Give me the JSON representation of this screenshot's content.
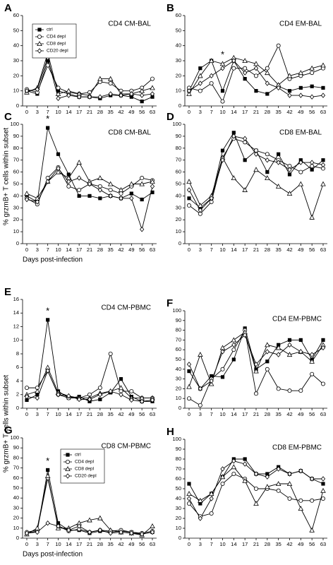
{
  "chart_data": [
    {
      "type": "line",
      "letter": "A",
      "title": "CD4 CM-BAL",
      "ylabel": "% grzmB+ T cells within subset",
      "legend": true,
      "categories": [
        "0",
        "3",
        "7",
        "10",
        "14",
        "17",
        "21",
        "28",
        "35",
        "42",
        "49",
        "56",
        "63"
      ],
      "ylim": [
        0,
        60
      ],
      "yticks": [
        0,
        10,
        20,
        30,
        40,
        50,
        60
      ],
      "series": [
        {
          "name": "ctrl",
          "color": "#000000",
          "marker": "square-filled",
          "values": [
            10,
            8,
            30,
            10,
            8,
            6,
            6,
            5,
            7,
            7,
            6,
            3,
            6
          ]
        },
        {
          "name": "CD4 depl",
          "color": "#000000",
          "marker": "circle",
          "values": [
            11,
            9,
            27,
            12,
            9,
            8,
            9,
            16,
            15,
            10,
            10,
            12,
            18
          ]
        },
        {
          "name": "CD8 depl",
          "color": "#000000",
          "marker": "triangle",
          "values": [
            9,
            12,
            35,
            8,
            10,
            8,
            7,
            18,
            18,
            8,
            8,
            10,
            12
          ]
        },
        {
          "name": "CD20 depl",
          "color": "#000000",
          "marker": "diamond",
          "values": [
            10,
            11,
            32,
            5,
            7,
            6,
            6,
            6,
            8,
            7,
            8,
            7,
            8
          ]
        }
      ]
    },
    {
      "type": "line",
      "letter": "B",
      "title": "CD4 EM-BAL",
      "annotation": "*",
      "categories": [
        "0",
        "3",
        "7",
        "10",
        "14",
        "17",
        "21",
        "28",
        "35",
        "42",
        "49",
        "56",
        "63"
      ],
      "ylim": [
        0,
        60
      ],
      "yticks": [
        0,
        10,
        20,
        30,
        40,
        50,
        60
      ],
      "series": [
        {
          "name": "ctrl",
          "color": "#000000",
          "marker": "square-filled",
          "values": [
            10,
            25,
            30,
            10,
            30,
            18,
            10,
            8,
            13,
            10,
            12,
            13,
            12
          ]
        },
        {
          "name": "CD4 depl",
          "color": "#000000",
          "marker": "circle",
          "values": [
            12,
            10,
            15,
            3,
            25,
            25,
            20,
            25,
            40,
            18,
            20,
            22,
            25
          ]
        },
        {
          "name": "CD8 depl",
          "color": "#000000",
          "marker": "triangle",
          "values": [
            8,
            20,
            30,
            28,
            32,
            30,
            28,
            22,
            14,
            20,
            22,
            25,
            27
          ]
        },
        {
          "name": "CD20 depl",
          "color": "#000000",
          "marker": "diamond",
          "values": [
            10,
            15,
            20,
            25,
            30,
            22,
            25,
            15,
            12,
            7,
            7,
            6,
            7
          ]
        }
      ]
    },
    {
      "type": "line",
      "letter": "C",
      "title": "CD8 CM-BAL",
      "xlabel": "Days post-infection",
      "annotation": "*",
      "categories": [
        "0",
        "3",
        "7",
        "10",
        "14",
        "17",
        "21",
        "28",
        "35",
        "42",
        "49",
        "56",
        "63"
      ],
      "ylim": [
        0,
        100
      ],
      "yticks": [
        0,
        10,
        20,
        30,
        40,
        50,
        60,
        70,
        80,
        90,
        100
      ],
      "series": [
        {
          "name": "ctrl",
          "color": "#000000",
          "marker": "square-filled",
          "values": [
            40,
            35,
            97,
            75,
            58,
            40,
            40,
            38,
            40,
            38,
            42,
            37,
            43
          ]
        },
        {
          "name": "CD4 depl",
          "color": "#000000",
          "marker": "circle",
          "values": [
            38,
            33,
            55,
            64,
            48,
            45,
            50,
            48,
            45,
            42,
            48,
            55,
            53
          ]
        },
        {
          "name": "CD8 depl",
          "color": "#000000",
          "marker": "triangle",
          "values": [
            42,
            38,
            52,
            60,
            55,
            68,
            52,
            55,
            50,
            45,
            50,
            50,
            52
          ]
        },
        {
          "name": "CD20 depl",
          "color": "#000000",
          "marker": "diamond",
          "values": [
            37,
            35,
            52,
            63,
            52,
            55,
            50,
            45,
            40,
            38,
            38,
            12,
            48
          ]
        }
      ]
    },
    {
      "type": "line",
      "letter": "D",
      "title": "CD8 EM-BAL",
      "categories": [
        "0",
        "3",
        "7",
        "10",
        "14",
        "17",
        "21",
        "28",
        "35",
        "42",
        "49",
        "56",
        "63"
      ],
      "ylim": [
        0,
        100
      ],
      "yticks": [
        0,
        10,
        20,
        30,
        40,
        50,
        60,
        70,
        80,
        90,
        100
      ],
      "series": [
        {
          "name": "ctrl",
          "color": "#000000",
          "marker": "square-filled",
          "values": [
            38,
            30,
            38,
            78,
            93,
            70,
            78,
            60,
            75,
            58,
            70,
            62,
            70
          ]
        },
        {
          "name": "CD4 depl",
          "color": "#000000",
          "marker": "circle",
          "values": [
            32,
            25,
            35,
            72,
            88,
            85,
            78,
            75,
            70,
            65,
            60,
            65,
            63
          ]
        },
        {
          "name": "CD8 depl",
          "color": "#000000",
          "marker": "triangle",
          "values": [
            52,
            32,
            40,
            72,
            55,
            45,
            62,
            55,
            48,
            42,
            50,
            22,
            50
          ]
        },
        {
          "name": "CD20 depl",
          "color": "#000000",
          "marker": "diamond",
          "values": [
            45,
            28,
            38,
            70,
            90,
            88,
            75,
            70,
            68,
            62,
            68,
            68,
            66
          ]
        }
      ]
    },
    {
      "type": "line",
      "letter": "E",
      "title": "CD4 CM-PBMC",
      "ylabel": "% grzmB+ T cells within subset",
      "annotation": "*",
      "categories": [
        "0",
        "3",
        "7",
        "10",
        "14",
        "17",
        "21",
        "28",
        "35",
        "42",
        "49",
        "56",
        "63"
      ],
      "ylim": [
        0,
        16
      ],
      "yticks": [
        0,
        2,
        4,
        6,
        8,
        10,
        12,
        14,
        16
      ],
      "series": [
        {
          "name": "ctrl",
          "color": "#000000",
          "marker": "square-filled",
          "values": [
            1.2,
            2,
            13,
            2.5,
            1.5,
            1.7,
            1,
            1.3,
            2.3,
            4.3,
            1.7,
            1,
            1
          ]
        },
        {
          "name": "CD4 depl",
          "color": "#000000",
          "marker": "circle",
          "values": [
            3,
            3,
            5.5,
            2,
            1.5,
            1.5,
            2,
            3,
            8,
            2.5,
            2.5,
            1.5,
            1.5
          ]
        },
        {
          "name": "CD8 depl",
          "color": "#000000",
          "marker": "triangle",
          "values": [
            2,
            2.5,
            6,
            2.3,
            1.8,
            1.5,
            1.5,
            2.2,
            2.5,
            3,
            1.5,
            1.5,
            1.5
          ]
        },
        {
          "name": "CD20 depl",
          "color": "#000000",
          "marker": "diamond",
          "values": [
            1.7,
            1.5,
            5.5,
            2,
            1.8,
            1.3,
            1.3,
            2,
            2.5,
            2,
            1.2,
            1,
            1.2
          ]
        }
      ]
    },
    {
      "type": "line",
      "letter": "F",
      "title": "CD4 EM-PBMC",
      "categories": [
        "0",
        "3",
        "7",
        "10",
        "14",
        "17",
        "21",
        "28",
        "35",
        "42",
        "49",
        "56",
        "63"
      ],
      "ylim": [
        0,
        100
      ],
      "yticks": [
        0,
        10,
        20,
        30,
        40,
        50,
        60,
        70,
        80,
        90,
        100
      ],
      "series": [
        {
          "name": "ctrl",
          "color": "#000000",
          "marker": "square-filled",
          "values": [
            38,
            20,
            33,
            32,
            50,
            82,
            40,
            48,
            65,
            70,
            70,
            50,
            70
          ]
        },
        {
          "name": "CD4 depl",
          "color": "#000000",
          "marker": "circle",
          "values": [
            10,
            3,
            30,
            40,
            60,
            80,
            15,
            40,
            20,
            18,
            18,
            35,
            25
          ]
        },
        {
          "name": "CD8 depl",
          "color": "#000000",
          "marker": "triangle",
          "values": [
            22,
            55,
            25,
            62,
            70,
            78,
            38,
            65,
            62,
            55,
            58,
            48,
            65
          ]
        },
        {
          "name": "CD20 depl",
          "color": "#000000",
          "marker": "diamond",
          "values": [
            45,
            20,
            28,
            58,
            65,
            75,
            45,
            58,
            55,
            65,
            58,
            55,
            62
          ]
        }
      ]
    },
    {
      "type": "line",
      "letter": "G",
      "title": "CD8 CM-PBMC",
      "xlabel": "Days post-infection",
      "annotation": "*",
      "legend": true,
      "categories": [
        "0",
        "3",
        "7",
        "10",
        "14",
        "17",
        "21",
        "28",
        "35",
        "42",
        "49",
        "56",
        "63"
      ],
      "ylim": [
        0,
        100
      ],
      "yticks": [
        0,
        10,
        20,
        30,
        40,
        50,
        60,
        70,
        80,
        90,
        100
      ],
      "series": [
        {
          "name": "ctrl",
          "color": "#000000",
          "marker": "square-filled",
          "values": [
            5,
            7,
            68,
            15,
            8,
            8,
            5,
            7,
            6,
            7,
            6,
            4,
            6
          ]
        },
        {
          "name": "CD4 depl",
          "color": "#000000",
          "marker": "circle",
          "values": [
            6,
            8,
            60,
            12,
            7,
            9,
            6,
            8,
            7,
            8,
            6,
            5,
            7
          ]
        },
        {
          "name": "CD8 depl",
          "color": "#000000",
          "marker": "triangle",
          "values": [
            4,
            10,
            62,
            10,
            10,
            15,
            18,
            20,
            8,
            6,
            5,
            3,
            12
          ]
        },
        {
          "name": "CD20 depl",
          "color": "#000000",
          "marker": "diamond",
          "values": [
            5,
            6,
            15,
            12,
            8,
            12,
            6,
            8,
            5,
            6,
            5,
            4,
            6
          ]
        }
      ]
    },
    {
      "type": "line",
      "letter": "H",
      "title": "CD8 EM-PBMC",
      "categories": [
        "0",
        "3",
        "7",
        "10",
        "14",
        "17",
        "21",
        "28",
        "35",
        "42",
        "49",
        "56",
        "63"
      ],
      "ylim": [
        0,
        100
      ],
      "yticks": [
        0,
        10,
        20,
        30,
        40,
        50,
        60,
        70,
        80,
        90,
        100
      ],
      "series": [
        {
          "name": "ctrl",
          "color": "#000000",
          "marker": "square-filled",
          "values": [
            55,
            35,
            45,
            62,
            80,
            80,
            65,
            65,
            72,
            65,
            68,
            60,
            55
          ]
        },
        {
          "name": "CD4 depl",
          "color": "#000000",
          "marker": "circle",
          "values": [
            35,
            22,
            25,
            55,
            65,
            60,
            50,
            50,
            48,
            40,
            38,
            38,
            40
          ]
        },
        {
          "name": "CD8 depl",
          "color": "#000000",
          "marker": "triangle",
          "values": [
            45,
            38,
            45,
            62,
            72,
            58,
            35,
            52,
            55,
            55,
            30,
            8,
            48
          ]
        },
        {
          "name": "CD20 depl",
          "color": "#000000",
          "marker": "diamond",
          "values": [
            40,
            20,
            40,
            70,
            78,
            75,
            65,
            62,
            70,
            65,
            68,
            60,
            60
          ]
        }
      ]
    }
  ]
}
